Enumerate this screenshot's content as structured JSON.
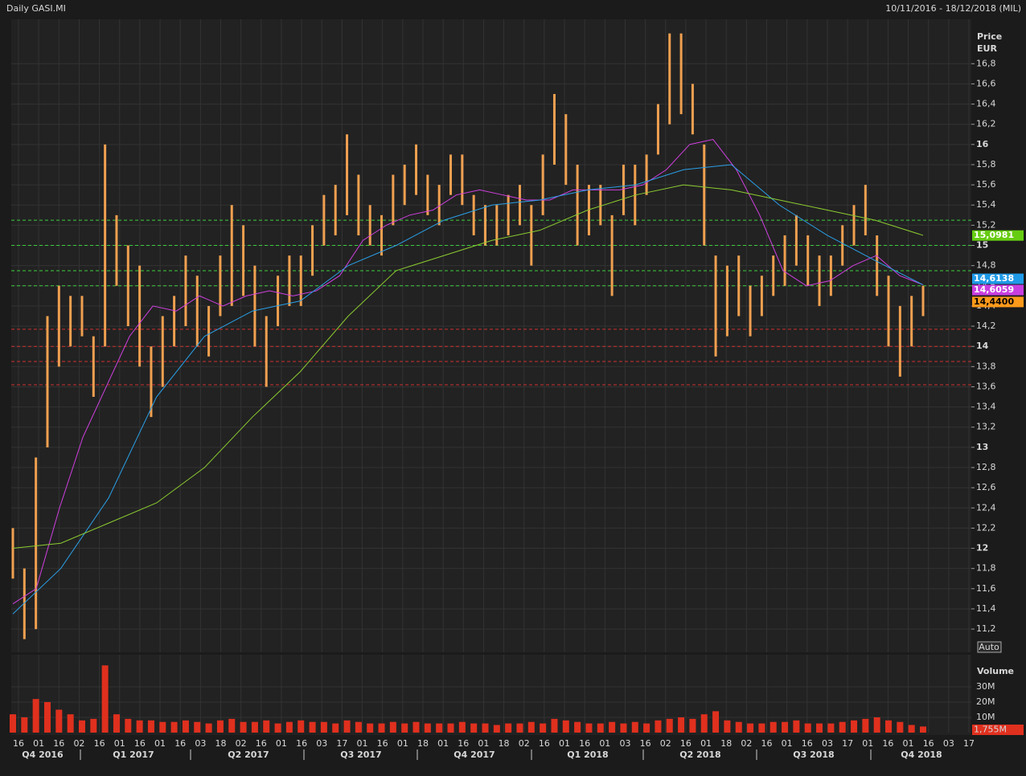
{
  "chart_data": {
    "type": "range_bar",
    "title": "Daily GASI.MI",
    "date_range": "10/11/2016 - 18/12/2018 (MIL)",
    "y_label_1": "Price",
    "y_label_2": "EUR",
    "auto_button": "Auto",
    "color": "#f0a050",
    "ylim": [
      10.97,
      17.24
    ],
    "yticks": [
      {
        "value": 11.2,
        "label": "11,2"
      },
      {
        "value": 11.4,
        "label": "11,4"
      },
      {
        "value": 11.6,
        "label": "11,6"
      },
      {
        "value": 11.8,
        "label": "11,8"
      },
      12,
      {
        "value": 12.2,
        "label": "12,2"
      },
      {
        "value": 12.4,
        "label": "12,4"
      },
      {
        "value": 12.6,
        "label": "12,6"
      },
      {
        "value": 12.8,
        "label": "12,8"
      },
      13,
      {
        "value": 13.2,
        "label": "13,2"
      },
      {
        "value": 13.4,
        "label": "13,4"
      },
      {
        "value": 13.6,
        "label": "13,6"
      },
      {
        "value": 13.8,
        "label": "13,8"
      },
      14,
      {
        "value": 14.2,
        "label": "14,2"
      },
      {
        "value": 14.4,
        "label": "14,4"
      },
      {
        "value": 14.6,
        "label": "14,6"
      },
      {
        "value": 14.8,
        "label": "14,8"
      },
      15,
      {
        "value": 15.2,
        "label": "15,2"
      },
      {
        "value": 15.4,
        "label": "15,4"
      },
      {
        "value": 15.6,
        "label": "15,6"
      },
      {
        "value": 15.8,
        "label": "15,8"
      },
      16,
      {
        "value": 16.2,
        "label": "16,2"
      },
      {
        "value": 16.4,
        "label": "16,4"
      },
      {
        "value": 16.6,
        "label": "16,6"
      },
      {
        "value": 16.8,
        "label": "16,8"
      }
    ],
    "grid": true,
    "high": [
      12.2,
      11.8,
      12.9,
      14.3,
      14.6,
      14.5,
      14.5,
      14.1,
      16.0,
      15.3,
      15.0,
      14.8,
      14.0,
      14.3,
      14.5,
      14.9,
      14.7,
      14.4,
      14.9,
      15.4,
      15.2,
      14.8,
      14.3,
      14.7,
      14.9,
      14.9,
      15.2,
      15.5,
      15.6,
      16.1,
      15.7,
      15.4,
      15.3,
      15.7,
      15.8,
      16.0,
      15.7,
      15.6,
      15.9,
      15.9,
      15.5,
      15.4,
      15.4,
      15.5,
      15.6,
      15.4,
      15.9,
      16.5,
      16.3,
      15.8,
      15.6,
      15.6,
      15.3,
      15.8,
      15.8,
      15.9,
      16.4,
      17.1,
      17.1,
      16.6,
      16.0,
      14.9,
      14.8,
      14.9,
      14.6,
      14.7,
      14.9,
      15.1,
      15.3,
      15.1,
      14.9,
      14.9,
      15.2,
      15.4,
      15.6,
      15.1,
      14.7,
      14.4,
      14.5,
      14.6
    ],
    "low": [
      11.7,
      11.1,
      11.2,
      13.0,
      13.8,
      14.0,
      14.1,
      13.5,
      14.0,
      14.6,
      14.2,
      13.8,
      13.3,
      13.6,
      14.0,
      14.2,
      14.0,
      13.9,
      14.3,
      14.4,
      14.5,
      14.0,
      13.6,
      14.2,
      14.4,
      14.4,
      14.7,
      15.0,
      15.1,
      15.3,
      15.1,
      15.0,
      14.9,
      15.2,
      15.4,
      15.5,
      15.3,
      15.2,
      15.5,
      15.4,
      15.1,
      15.0,
      15.0,
      15.1,
      15.2,
      14.8,
      15.3,
      15.8,
      15.6,
      15.0,
      15.1,
      15.2,
      14.5,
      15.3,
      15.2,
      15.5,
      15.9,
      16.2,
      16.3,
      16.1,
      15.0,
      13.9,
      14.1,
      14.3,
      14.1,
      14.3,
      14.5,
      14.6,
      14.8,
      14.6,
      14.4,
      14.5,
      14.8,
      15.0,
      15.1,
      14.5,
      14.0,
      13.7,
      14.0,
      14.3
    ],
    "moving_averages": [
      {
        "color": "#d040e0",
        "values": [
          11.45,
          11.6,
          12.4,
          13.1,
          13.6,
          14.1,
          14.4,
          14.35,
          14.5,
          14.4,
          14.5,
          14.55,
          14.5,
          14.55,
          14.7,
          15.05,
          15.2,
          15.3,
          15.35,
          15.5,
          15.55,
          15.5,
          15.45,
          15.45,
          15.55,
          15.55,
          15.55,
          15.6,
          15.75,
          16.0,
          16.05,
          15.75,
          15.3,
          14.75,
          14.6,
          14.65,
          14.8,
          14.9,
          14.7,
          14.61
        ]
      },
      {
        "color": "#2aa0e8",
        "values": [
          11.35,
          11.8,
          12.5,
          13.5,
          14.1,
          14.35,
          14.45,
          14.8,
          15.0,
          15.25,
          15.4,
          15.45,
          15.55,
          15.6,
          15.75,
          15.8,
          15.4,
          15.1,
          14.85,
          14.61
        ]
      },
      {
        "color": "#8ccc30",
        "values": [
          12.0,
          12.05,
          12.25,
          12.45,
          12.8,
          13.3,
          13.75,
          14.3,
          14.75,
          14.9,
          15.05,
          15.15,
          15.35,
          15.5,
          15.6,
          15.55,
          15.45,
          15.35,
          15.25,
          15.1
        ]
      }
    ],
    "levels": [
      {
        "value": 15.25,
        "color": "#3ccf3c"
      },
      {
        "value": 15.0,
        "color": "#3ccf3c"
      },
      {
        "value": 14.75,
        "color": "#3ccf3c"
      },
      {
        "value": 14.6,
        "color": "#3ccf3c"
      },
      {
        "value": 14.17,
        "color": "#d03030"
      },
      {
        "value": 14.0,
        "color": "#d03030"
      },
      {
        "value": 13.85,
        "color": "#d03030"
      },
      {
        "value": 13.62,
        "color": "#d03030"
      }
    ],
    "last_values": [
      {
        "value": 15.0981,
        "label": "15,0981",
        "color": "#66cc11",
        "text_color": "#ffffff"
      },
      {
        "value": 14.6138,
        "label": "14,6138",
        "color": "#1f9ae8",
        "text_color": "#ffffff"
      },
      {
        "value": 14.6059,
        "label": "14,6059",
        "color": "#c83ee0",
        "text_color": "#ffffff"
      },
      {
        "value": 14.44,
        "label": "14,4400",
        "color": "#ff9a1a",
        "text_color": "#000000"
      }
    ],
    "x_labels": [
      "16",
      "01",
      "16",
      "02",
      "16",
      "01",
      "16",
      "01",
      "16",
      "03",
      "18",
      "02",
      "16",
      "01",
      "16",
      "03",
      "17",
      "01",
      "16",
      "01",
      "18",
      "01",
      "16",
      "01",
      "18",
      "02",
      "16",
      "01",
      "16",
      "01",
      "03",
      "16",
      "02",
      "16",
      "01",
      "18",
      "02",
      "16",
      "01",
      "16",
      "03",
      "17",
      "01",
      "16",
      "01",
      "16",
      "03",
      "17"
    ],
    "quarters": [
      "Q4 2016",
      "Q1 2017",
      "Q2 2017",
      "Q3 2017",
      "Q4 2017",
      "Q1 2018",
      "Q2 2018",
      "Q3 2018",
      "Q4 2018"
    ],
    "volume": {
      "title": "Volume",
      "color": "#e0301e",
      "ylim": [
        0,
        51
      ],
      "yticks": [
        {
          "value": 10,
          "label": "10M"
        },
        {
          "value": 20,
          "label": "20M"
        },
        {
          "value": 30,
          "label": "30M"
        }
      ],
      "values": [
        12,
        10,
        22,
        20,
        15,
        12,
        8,
        9,
        44,
        12,
        9,
        8,
        8,
        7,
        7,
        8,
        7,
        6,
        8,
        9,
        7,
        7,
        8,
        6,
        7,
        8,
        7,
        7,
        6,
        8,
        7,
        6,
        6,
        7,
        6,
        7,
        6,
        6,
        6,
        7,
        6,
        6,
        5,
        6,
        6,
        7,
        6,
        9,
        8,
        7,
        6,
        6,
        7,
        6,
        7,
        6,
        8,
        9,
        10,
        9,
        12,
        14,
        8,
        7,
        6,
        6,
        7,
        7,
        8,
        6,
        6,
        6,
        7,
        8,
        9,
        10,
        8,
        7,
        5,
        4
      ],
      "last_value": 1.755,
      "last_label": "1,755M"
    }
  }
}
